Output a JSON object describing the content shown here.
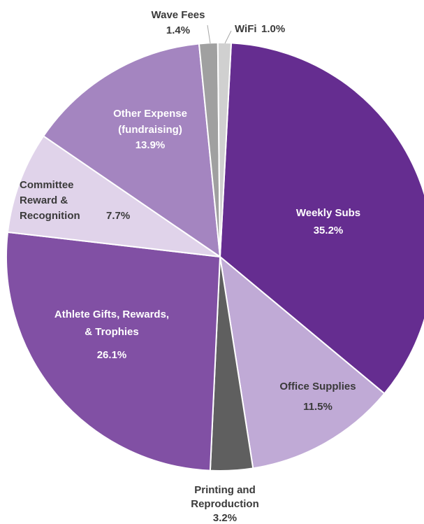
{
  "chart_data": {
    "type": "pie",
    "categories": [
      "Weekly Subs",
      "Office Supplies",
      "Printing and\nReproduction",
      "Athlete Gifts, Rewards,\n& Trophies",
      "Committee\nReward &\nRecognition",
      "Other Expense\n(fundraising)",
      "Wave Fees",
      "WiFi"
    ],
    "values": [
      35.2,
      11.5,
      3.2,
      26.1,
      7.7,
      13.9,
      1.4,
      1.0
    ],
    "value_labels": [
      "35.2%",
      "11.5%",
      "3.2%",
      "26.1%",
      "7.7%",
      "13.9%",
      "1.4%",
      "1.0%"
    ],
    "colors": [
      "#652d90",
      "#c0aad6",
      "#5f5f5f",
      "#8150a4",
      "#e0d3ea",
      "#a485c0",
      "#a0a0a0",
      "#d0d0d0"
    ]
  }
}
